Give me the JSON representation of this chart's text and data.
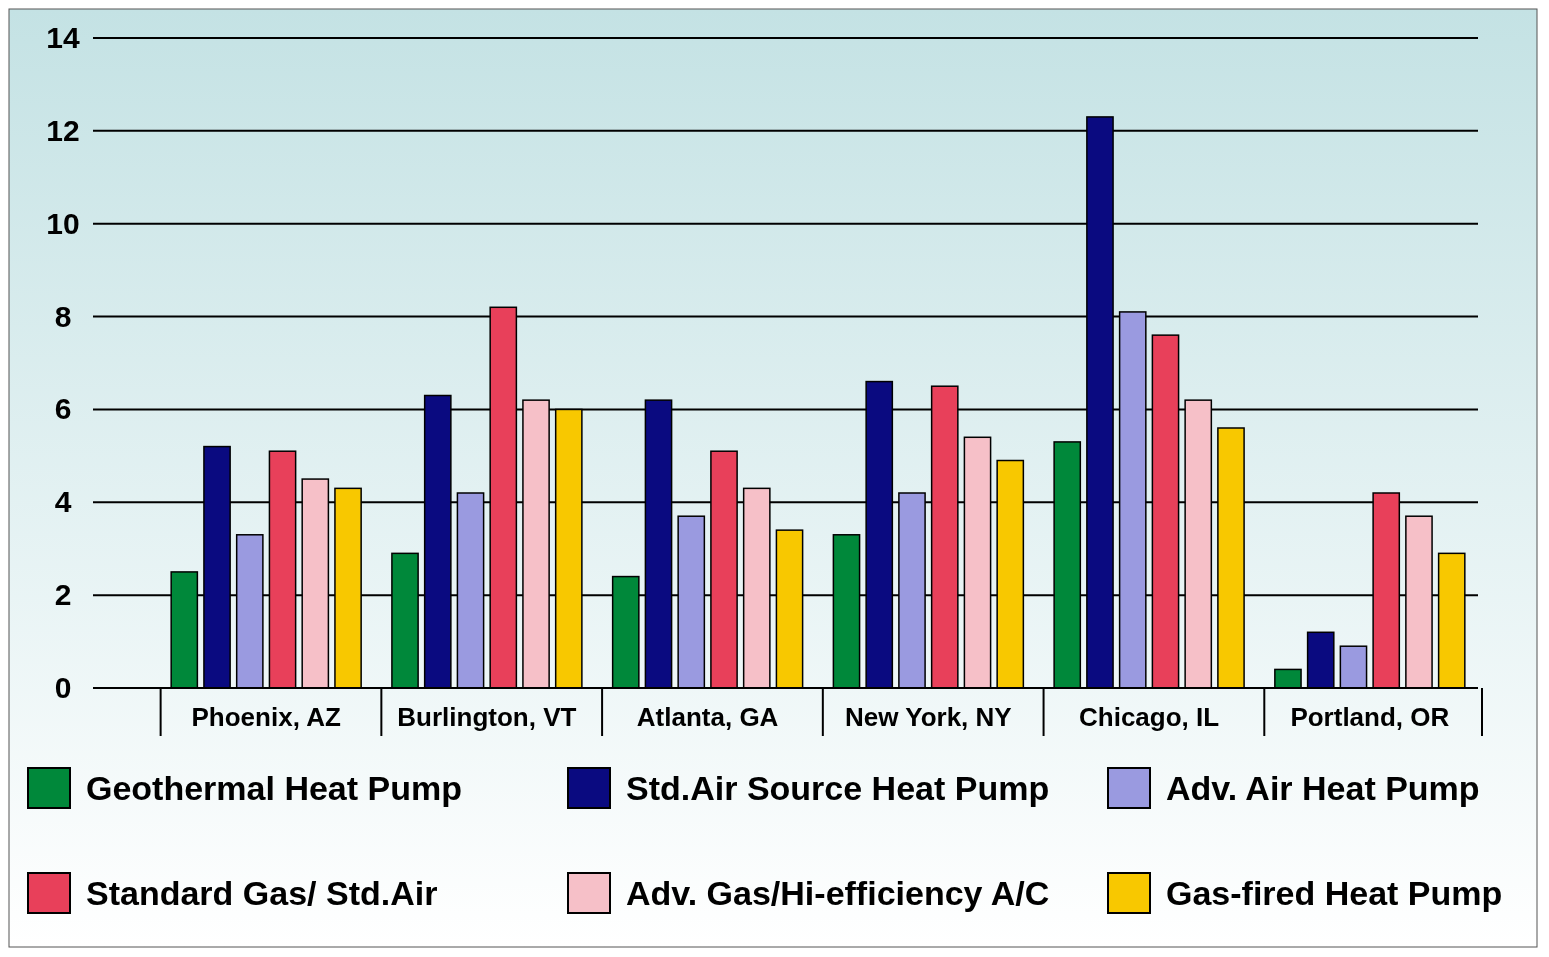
{
  "chart_data": {
    "type": "bar",
    "categories": [
      "Phoenix, AZ",
      "Burlington, VT",
      "Atlanta, GA",
      "New York, NY",
      "Chicago, IL",
      "Portland, OR"
    ],
    "series": [
      {
        "name": "Geothermal Heat Pump",
        "color": "#00883a",
        "values": [
          2.5,
          2.9,
          2.4,
          3.3,
          5.3,
          0.4
        ]
      },
      {
        "name": "Std.Air Source Heat Pump",
        "color": "#0a0a80",
        "values": [
          5.2,
          6.3,
          6.2,
          6.6,
          12.3,
          1.2
        ]
      },
      {
        "name": "Adv. Air Heat Pump",
        "color": "#9a9ae0",
        "values": [
          3.3,
          4.2,
          3.7,
          4.2,
          8.1,
          0.9
        ]
      },
      {
        "name": "Standard Gas/ Std.Air",
        "color": "#e8405a",
        "values": [
          5.1,
          8.2,
          5.1,
          6.5,
          7.6,
          4.2
        ]
      },
      {
        "name": "Adv. Gas/Hi-efficiency A/C",
        "color": "#f6c0c8",
        "values": [
          4.5,
          6.2,
          4.3,
          5.4,
          6.2,
          3.7
        ]
      },
      {
        "name": "Gas-fired Heat Pump",
        "color": "#f8c800",
        "values": [
          4.3,
          6.0,
          3.4,
          4.9,
          5.6,
          2.9
        ]
      }
    ],
    "ylim": [
      0,
      14
    ],
    "yticks": [
      0,
      2,
      4,
      6,
      8,
      10,
      12,
      14
    ],
    "grid": "y",
    "legend": "bottom"
  }
}
